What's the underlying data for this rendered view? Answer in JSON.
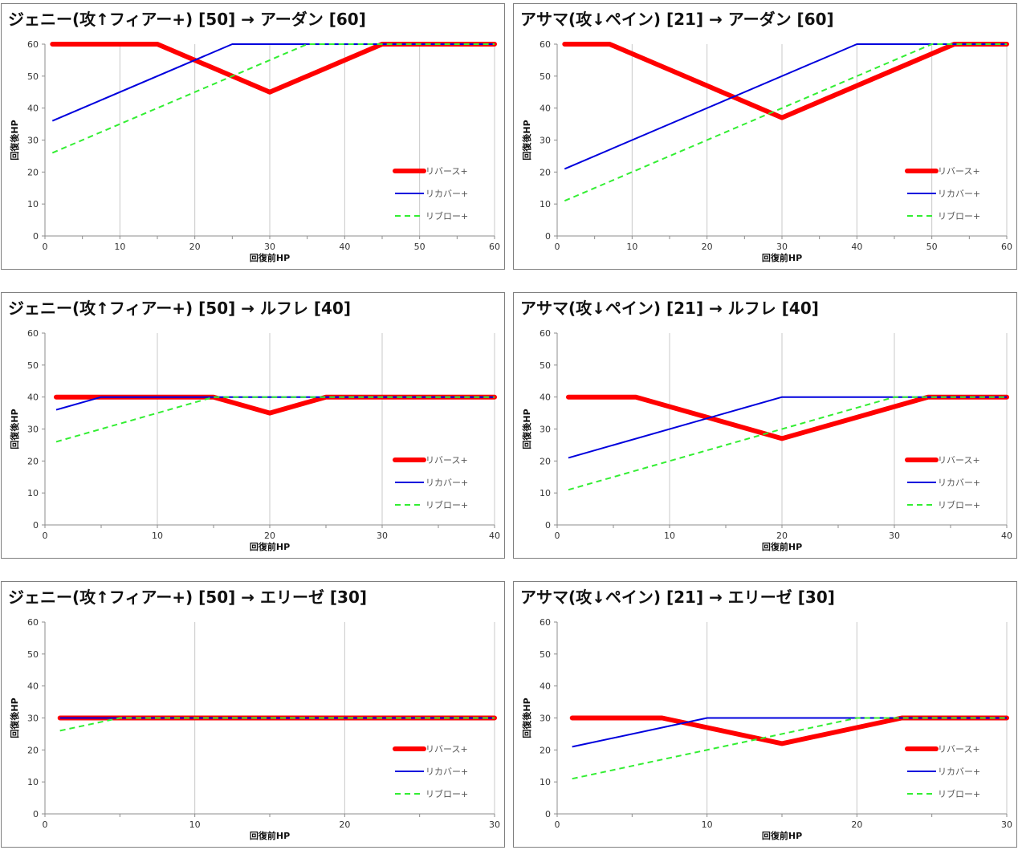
{
  "colors": {
    "reverse": "#ff0000",
    "recover": "#0000dd",
    "reblow": "#33ee33",
    "grid": "#c8c8c8",
    "axis": "#8c8c8c"
  },
  "legend_labels": [
    "リバース+",
    "リカバー+",
    "リブロー+"
  ],
  "chart_data": [
    {
      "type": "line",
      "title": "ジェニー(攻↑フィアー+) [50] → アーダン [60]",
      "xlabel": "回復前HP",
      "ylabel": "回復後HP",
      "xlim": [
        0,
        60
      ],
      "ylim": [
        0,
        60
      ],
      "xticks": [
        0,
        10,
        20,
        30,
        40,
        50,
        60
      ],
      "yticks": [
        0,
        10,
        20,
        30,
        40,
        50,
        60
      ],
      "legend_position": "right",
      "series": [
        {
          "name": "リバース+",
          "points": [
            [
              1,
              60
            ],
            [
              15,
              60
            ],
            [
              30,
              45
            ],
            [
              45,
              60
            ],
            [
              60,
              60
            ]
          ]
        },
        {
          "name": "リカバー+",
          "points": [
            [
              1,
              36
            ],
            [
              25,
              60
            ],
            [
              60,
              60
            ]
          ]
        },
        {
          "name": "リブロー+",
          "points": [
            [
              1,
              26
            ],
            [
              35,
              60
            ],
            [
              60,
              60
            ]
          ]
        }
      ]
    },
    {
      "type": "line",
      "title": "アサマ(攻↓ペイン) [21] → アーダン [60]",
      "xlabel": "回復前HP",
      "ylabel": "回復後HP",
      "xlim": [
        0,
        60
      ],
      "ylim": [
        0,
        60
      ],
      "xticks": [
        0,
        10,
        20,
        30,
        40,
        50,
        60
      ],
      "yticks": [
        0,
        10,
        20,
        30,
        40,
        50,
        60
      ],
      "legend_position": "right",
      "series": [
        {
          "name": "リバース+",
          "points": [
            [
              1,
              60
            ],
            [
              7,
              60
            ],
            [
              30,
              37
            ],
            [
              53,
              60
            ],
            [
              60,
              60
            ]
          ]
        },
        {
          "name": "リカバー+",
          "points": [
            [
              1,
              21
            ],
            [
              40,
              60
            ],
            [
              60,
              60
            ]
          ]
        },
        {
          "name": "リブロー+",
          "points": [
            [
              1,
              11
            ],
            [
              50,
              60
            ],
            [
              60,
              60
            ]
          ]
        }
      ]
    },
    {
      "type": "line",
      "title": "ジェニー(攻↑フィアー+) [50] → ルフレ [40]",
      "xlabel": "回復前HP",
      "ylabel": "回復後HP",
      "xlim": [
        0,
        40
      ],
      "ylim": [
        0,
        60
      ],
      "xticks": [
        0,
        10,
        20,
        30,
        40
      ],
      "yticks": [
        0,
        10,
        20,
        30,
        40,
        50,
        60
      ],
      "legend_position": "right",
      "series": [
        {
          "name": "リバース+",
          "points": [
            [
              1,
              40
            ],
            [
              15,
              40
            ],
            [
              20,
              35
            ],
            [
              25,
              40
            ],
            [
              40,
              40
            ]
          ]
        },
        {
          "name": "リカバー+",
          "points": [
            [
              1,
              36
            ],
            [
              5,
              40
            ],
            [
              40,
              40
            ]
          ]
        },
        {
          "name": "リブロー+",
          "points": [
            [
              1,
              26
            ],
            [
              15,
              40
            ],
            [
              40,
              40
            ]
          ]
        }
      ]
    },
    {
      "type": "line",
      "title": "アサマ(攻↓ペイン) [21] → ルフレ [40]",
      "xlabel": "回復前HP",
      "ylabel": "回復後HP",
      "xlim": [
        0,
        40
      ],
      "ylim": [
        0,
        60
      ],
      "xticks": [
        0,
        10,
        20,
        30,
        40
      ],
      "yticks": [
        0,
        10,
        20,
        30,
        40,
        50,
        60
      ],
      "legend_position": "right",
      "series": [
        {
          "name": "リバース+",
          "points": [
            [
              1,
              40
            ],
            [
              7,
              40
            ],
            [
              20,
              27
            ],
            [
              33,
              40
            ],
            [
              40,
              40
            ]
          ]
        },
        {
          "name": "リカバー+",
          "points": [
            [
              1,
              21
            ],
            [
              20,
              40
            ],
            [
              40,
              40
            ]
          ]
        },
        {
          "name": "リブロー+",
          "points": [
            [
              1,
              11
            ],
            [
              30,
              40
            ],
            [
              40,
              40
            ]
          ]
        }
      ]
    },
    {
      "type": "line",
      "title": "ジェニー(攻↑フィアー+) [50] → エリーゼ [30]",
      "xlabel": "回復前HP",
      "ylabel": "回復後HP",
      "xlim": [
        0,
        30
      ],
      "ylim": [
        0,
        60
      ],
      "xticks": [
        0,
        10,
        20,
        30
      ],
      "yticks": [
        0,
        10,
        20,
        30,
        40,
        50,
        60
      ],
      "legend_position": "right",
      "series": [
        {
          "name": "リバース+",
          "points": [
            [
              1,
              30
            ],
            [
              30,
              30
            ]
          ]
        },
        {
          "name": "リカバー+",
          "points": [
            [
              1,
              30
            ],
            [
              30,
              30
            ]
          ]
        },
        {
          "name": "リブロー+",
          "points": [
            [
              1,
              26
            ],
            [
              5,
              30
            ],
            [
              30,
              30
            ]
          ]
        }
      ]
    },
    {
      "type": "line",
      "title": "アサマ(攻↓ペイン) [21] → エリーゼ [30]",
      "xlabel": "回復前HP",
      "ylabel": "回復後HP",
      "xlim": [
        0,
        30
      ],
      "ylim": [
        0,
        60
      ],
      "xticks": [
        0,
        10,
        20,
        30
      ],
      "yticks": [
        0,
        10,
        20,
        30,
        40,
        50,
        60
      ],
      "legend_position": "right",
      "series": [
        {
          "name": "リバース+",
          "points": [
            [
              1,
              30
            ],
            [
              7,
              30
            ],
            [
              15,
              22
            ],
            [
              23,
              30
            ],
            [
              30,
              30
            ]
          ]
        },
        {
          "name": "リカバー+",
          "points": [
            [
              1,
              21
            ],
            [
              10,
              30
            ],
            [
              30,
              30
            ]
          ]
        },
        {
          "name": "リブロー+",
          "points": [
            [
              1,
              11
            ],
            [
              20,
              30
            ],
            [
              30,
              30
            ]
          ]
        }
      ]
    }
  ]
}
